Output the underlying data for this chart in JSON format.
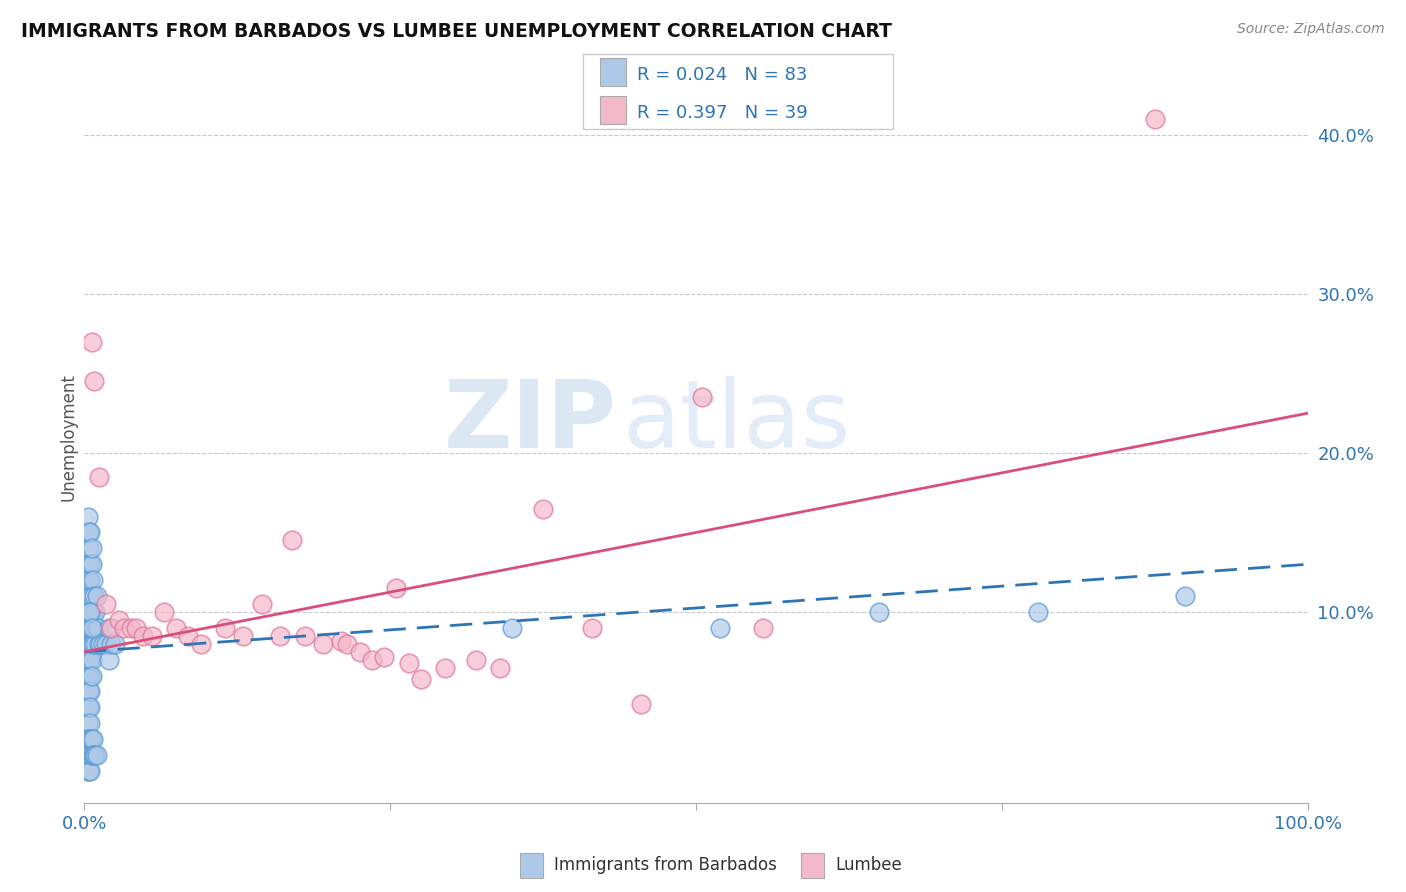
{
  "title": "IMMIGRANTS FROM BARBADOS VS LUMBEE UNEMPLOYMENT CORRELATION CHART",
  "source": "Source: ZipAtlas.com",
  "ylabel": "Unemployment",
  "watermark_zip": "ZIP",
  "watermark_atlas": "atlas",
  "legend_r1": "0.024",
  "legend_n1": "83",
  "legend_r2": "0.397",
  "legend_n2": "39",
  "series1_label": "Immigrants from Barbados",
  "series2_label": "Lumbee",
  "y_ticks": [
    0.1,
    0.2,
    0.3,
    0.4
  ],
  "y_tick_labels": [
    "10.0%",
    "20.0%",
    "30.0%",
    "40.0%"
  ],
  "xlim": [
    0.0,
    1.0
  ],
  "ylim": [
    -0.02,
    0.44
  ],
  "blue_color": "#aec9e8",
  "blue_edge_color": "#5b9bd5",
  "pink_color": "#f4b8cb",
  "pink_edge_color": "#e07898",
  "blue_line_color": "#2e75b6",
  "pink_line_color": "#d94f7a",
  "grid_color": "#c8c8c8",
  "legend_text_color": "#2e75b6",
  "ytick_color": "#2e75b6",
  "xtick_color": "#2e75b6",
  "background_color": "#ffffff",
  "blue_scatter_x": [
    0.003,
    0.003,
    0.003,
    0.003,
    0.003,
    0.003,
    0.003,
    0.003,
    0.003,
    0.003,
    0.004,
    0.004,
    0.004,
    0.004,
    0.004,
    0.004,
    0.004,
    0.004,
    0.004,
    0.004,
    0.005,
    0.005,
    0.005,
    0.005,
    0.005,
    0.005,
    0.005,
    0.005,
    0.005,
    0.005,
    0.006,
    0.006,
    0.006,
    0.006,
    0.006,
    0.006,
    0.007,
    0.007,
    0.007,
    0.008,
    0.008,
    0.009,
    0.009,
    0.01,
    0.01,
    0.011,
    0.012,
    0.013,
    0.015,
    0.018,
    0.02,
    0.02,
    0.022,
    0.025,
    0.003,
    0.003,
    0.003,
    0.004,
    0.004,
    0.004,
    0.005,
    0.005,
    0.005,
    0.006,
    0.006,
    0.007,
    0.007,
    0.008,
    0.009,
    0.01,
    0.003,
    0.003,
    0.004,
    0.005,
    0.006,
    0.35,
    0.52,
    0.65,
    0.78,
    0.9,
    0.004,
    0.005,
    0.006
  ],
  "blue_scatter_y": [
    0.13,
    0.12,
    0.1,
    0.09,
    0.08,
    0.07,
    0.06,
    0.05,
    0.04,
    0.03,
    0.14,
    0.12,
    0.11,
    0.1,
    0.09,
    0.08,
    0.07,
    0.06,
    0.05,
    0.04,
    0.13,
    0.12,
    0.1,
    0.09,
    0.08,
    0.07,
    0.06,
    0.05,
    0.04,
    0.03,
    0.13,
    0.11,
    0.09,
    0.08,
    0.07,
    0.06,
    0.12,
    0.1,
    0.08,
    0.11,
    0.09,
    0.1,
    0.08,
    0.11,
    0.09,
    0.09,
    0.08,
    0.08,
    0.08,
    0.08,
    0.09,
    0.07,
    0.08,
    0.08,
    0.02,
    0.01,
    0.0,
    0.02,
    0.01,
    0.0,
    0.02,
    0.01,
    0.0,
    0.02,
    0.01,
    0.02,
    0.01,
    0.01,
    0.01,
    0.01,
    0.15,
    0.16,
    0.15,
    0.15,
    0.14,
    0.09,
    0.09,
    0.1,
    0.1,
    0.11,
    0.1,
    0.1,
    0.09
  ],
  "pink_scatter_x": [
    0.006,
    0.008,
    0.012,
    0.018,
    0.022,
    0.028,
    0.032,
    0.038,
    0.042,
    0.048,
    0.055,
    0.065,
    0.075,
    0.085,
    0.095,
    0.115,
    0.13,
    0.145,
    0.16,
    0.17,
    0.18,
    0.195,
    0.21,
    0.215,
    0.225,
    0.235,
    0.245,
    0.255,
    0.265,
    0.275,
    0.295,
    0.32,
    0.34,
    0.375,
    0.415,
    0.455,
    0.505,
    0.555,
    0.875
  ],
  "pink_scatter_y": [
    0.27,
    0.245,
    0.185,
    0.105,
    0.09,
    0.095,
    0.09,
    0.09,
    0.09,
    0.085,
    0.085,
    0.1,
    0.09,
    0.085,
    0.08,
    0.09,
    0.085,
    0.105,
    0.085,
    0.145,
    0.085,
    0.08,
    0.082,
    0.08,
    0.075,
    0.07,
    0.072,
    0.115,
    0.068,
    0.058,
    0.065,
    0.07,
    0.065,
    0.165,
    0.09,
    0.042,
    0.235,
    0.09,
    0.41
  ],
  "blue_line_x": [
    0.0,
    1.0
  ],
  "blue_line_y": [
    0.075,
    0.13
  ],
  "pink_line_x": [
    0.0,
    1.0
  ],
  "pink_line_y": [
    0.075,
    0.225
  ]
}
